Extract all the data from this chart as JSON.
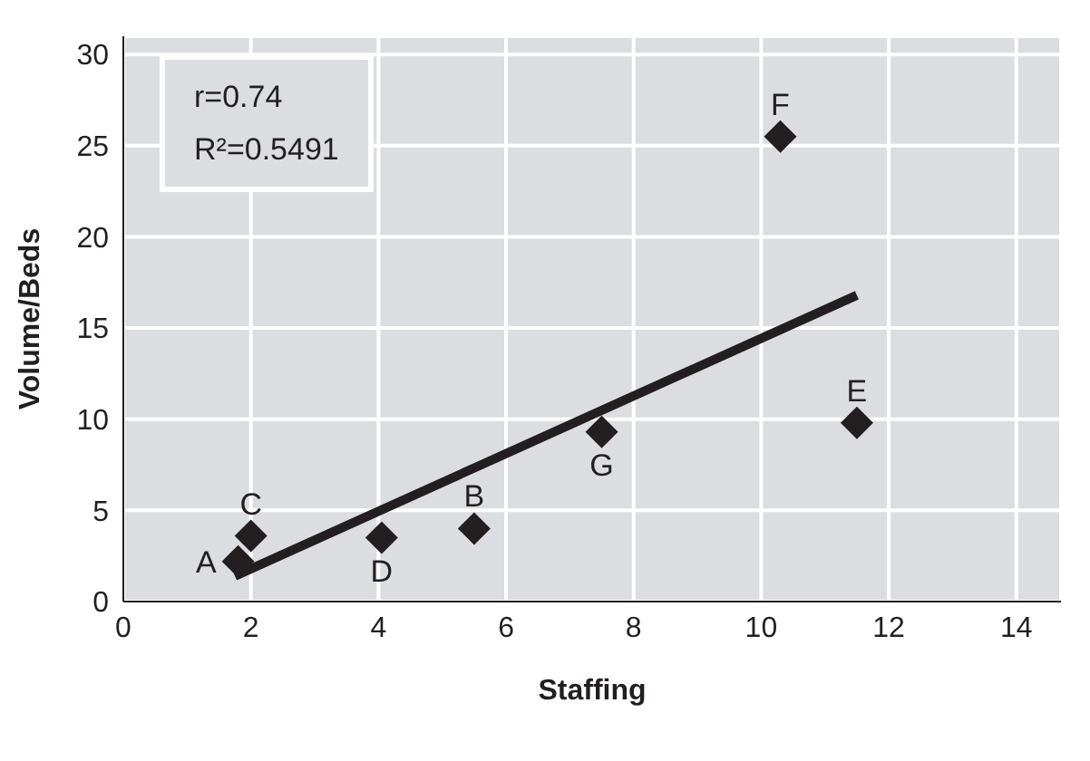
{
  "chart_data": {
    "type": "scatter",
    "xlabel": "Staffing",
    "ylabel": "Volume/Beds",
    "xlim": [
      0,
      14.7
    ],
    "xticks": [
      0,
      2,
      4,
      6,
      8,
      10,
      12,
      14
    ],
    "ylim": [
      0,
      31
    ],
    "yticks": [
      0,
      5,
      10,
      15,
      20,
      25,
      30
    ],
    "grid": true,
    "marker": "diamond",
    "legend": false,
    "series": [
      {
        "color": "#231f20",
        "x": [
          1.8,
          2.0,
          4.05,
          5.5,
          7.5,
          10.3,
          11.5
        ],
        "values": [
          2.2,
          3.6,
          3.5,
          4.0,
          9.3,
          25.5,
          9.8
        ]
      },
      {
        "type": "line",
        "color": "#231f20",
        "marker": "none",
        "line_style": "solid",
        "x": [
          1.75,
          11.5
        ],
        "values": [
          1.4,
          16.8
        ]
      }
    ],
    "annotations": [
      "r=0.74",
      "R²=0.5491",
      {
        "text": "A",
        "x": 1.8,
        "y": 2.2
      },
      {
        "text": "C",
        "x": 2.0,
        "y": 3.6
      },
      {
        "text": "D",
        "x": 4.05,
        "y": 3.5
      },
      {
        "text": "B",
        "x": 5.5,
        "y": 4.0
      },
      {
        "text": "G",
        "x": 7.5,
        "y": 9.3
      },
      {
        "text": "F",
        "x": 10.3,
        "y": 25.5
      },
      {
        "text": "E",
        "x": 11.5,
        "y": 9.8
      }
    ]
  }
}
